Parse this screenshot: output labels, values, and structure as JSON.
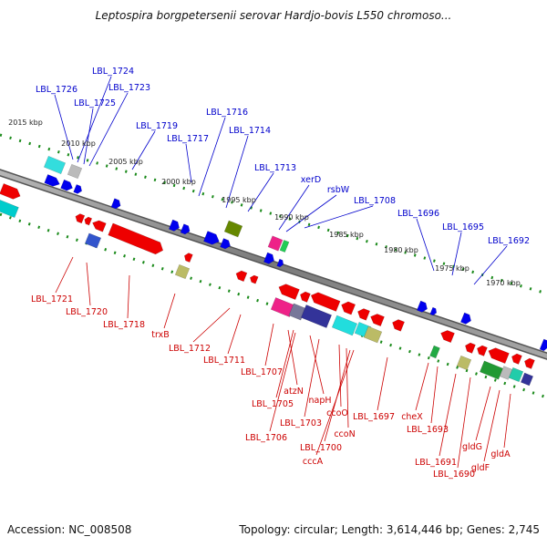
{
  "title": "Leptospira borgpetersenii serovar Hardjo-bovis L550 chromoso...",
  "footer": {
    "accession": "Accession: NC_008508",
    "topology": "Topology: circular; Length: 3,614,446 bp; Genes: 2,745"
  },
  "colors": {
    "backbone": "#8c8c8c",
    "upper_label": "#0000cc",
    "lower_label": "#cc0000",
    "tick": "#1a8a1a"
  },
  "ticks": [
    "2015 kbp",
    "2010 kbp",
    "2005 kbp",
    "2000 kbp",
    "1995 kbp",
    "1990 kbp",
    "1985 kbp",
    "1980 kbp",
    "1975 kbp",
    "1970 kbp"
  ],
  "upper_labels": [
    "LBL_1726",
    "LBL_1724",
    "LBL_1725",
    "LBL_1723",
    "LBL_1719",
    "LBL_1716",
    "LBL_1717",
    "LBL_1714",
    "LBL_1713",
    "xerD",
    "rsbW",
    "LBL_1708",
    "LBL_1696",
    "LBL_1695",
    "LBL_1692"
  ],
  "lower_labels": [
    "LBL_1721",
    "LBL_1720",
    "LBL_1718",
    "trxB",
    "LBL_1712",
    "LBL_1711",
    "LBL_1707",
    "atzN",
    "LBL_1705",
    "napH",
    "LBL_1706",
    "LBL_1703",
    "ccoO",
    "ccoN",
    "LBL_1700",
    "cccA",
    "LBL_1697",
    "cheX",
    "LBL_1693",
    "LBL_1691",
    "LBL_1690",
    "gldG",
    "gldF",
    "gldA"
  ]
}
